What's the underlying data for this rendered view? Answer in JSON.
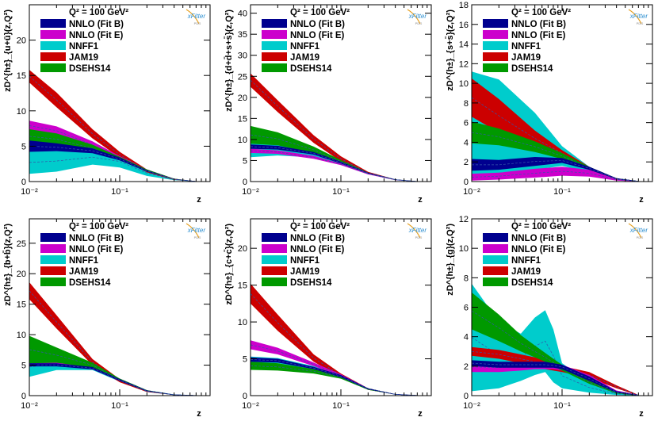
{
  "figure": {
    "q2_label": "Q² = 100 GeV²",
    "logo_text": "xFitter",
    "logo_sub": "PDG",
    "xlabel": "z",
    "xticks": [
      "10⁻²",
      "10⁻¹"
    ],
    "legend": [
      {
        "name": "NNLO (Fit B)",
        "color": "#00008f"
      },
      {
        "name": "NNLO (Fit E)",
        "color": "#cc00cc"
      },
      {
        "name": "NNFF1",
        "color": "#00cccc"
      },
      {
        "name": "JAM19",
        "color": "#cc0000"
      },
      {
        "name": "DSEHS14",
        "color": "#009900"
      }
    ]
  },
  "chart_data": [
    {
      "type": "area",
      "ylabel": "zD^{h±}_{u+ū}(z,Q²)",
      "ylim": [
        0,
        25
      ],
      "yticks": [
        0,
        5,
        10,
        15,
        20
      ],
      "xlim": [
        0.01,
        1
      ],
      "series": [
        {
          "name": "NNFF1",
          "color": "#00cccc",
          "x": [
            0.01,
            0.02,
            0.05,
            0.1,
            0.2,
            0.4,
            0.7
          ],
          "lower": [
            1.1,
            1.4,
            2.4,
            2.0,
            0.8,
            0.2,
            0.0
          ],
          "upper": [
            4.3,
            4.4,
            4.5,
            3.7,
            1.6,
            0.35,
            0.05
          ]
        },
        {
          "name": "JAM19",
          "color": "#cc0000",
          "x": [
            0.01,
            0.02,
            0.05,
            0.1,
            0.2,
            0.4,
            0.7
          ],
          "lower": [
            14.0,
            10.5,
            6.1,
            3.4,
            1.3,
            0.25,
            0.0
          ],
          "upper": [
            15.8,
            12.6,
            7.4,
            4.2,
            1.7,
            0.4,
            0.05
          ]
        },
        {
          "name": "NNLO (Fit E)",
          "color": "#cc00cc",
          "x": [
            0.01,
            0.02,
            0.05,
            0.1,
            0.2,
            0.4,
            0.7
          ],
          "lower": [
            7.2,
            6.6,
            4.7,
            3.0,
            1.4,
            0.3,
            0.0
          ],
          "upper": [
            8.6,
            7.8,
            5.7,
            3.6,
            1.7,
            0.4,
            0.05
          ]
        },
        {
          "name": "DSEHS14",
          "color": "#009900",
          "x": [
            0.01,
            0.02,
            0.05,
            0.1,
            0.2,
            0.4,
            0.7
          ],
          "lower": [
            5.4,
            5.2,
            4.2,
            3.0,
            1.4,
            0.3,
            0.0
          ],
          "upper": [
            7.4,
            6.8,
            5.2,
            3.5,
            1.7,
            0.4,
            0.05
          ]
        },
        {
          "name": "NNLO (Fit B)",
          "color": "#00008f",
          "x": [
            0.01,
            0.02,
            0.05,
            0.1,
            0.2,
            0.4,
            0.7
          ],
          "lower": [
            4.2,
            4.3,
            4.0,
            3.0,
            1.4,
            0.3,
            0.0
          ],
          "upper": [
            5.8,
            5.4,
            4.7,
            3.4,
            1.6,
            0.35,
            0.05
          ]
        }
      ]
    },
    {
      "type": "area",
      "ylabel": "zD^{h±}_{d+d̄+s+s̄}(z,Q²)",
      "ylim": [
        0,
        42
      ],
      "yticks": [
        0,
        5,
        10,
        15,
        20,
        25,
        30,
        35,
        40
      ],
      "xlim": [
        0.01,
        1
      ],
      "series": [
        {
          "name": "NNFF1",
          "color": "#00cccc",
          "x": [
            0.01,
            0.02,
            0.05,
            0.1,
            0.2,
            0.4,
            0.7
          ],
          "lower": [
            5.8,
            6.2,
            5.7,
            4.1,
            1.8,
            0.4,
            0.0
          ],
          "upper": [
            11.2,
            10.6,
            7.2,
            4.7,
            2.1,
            0.5,
            0.05
          ]
        },
        {
          "name": "JAM19",
          "color": "#cc0000",
          "x": [
            0.01,
            0.02,
            0.05,
            0.1,
            0.2,
            0.4,
            0.7
          ],
          "lower": [
            22.5,
            16.5,
            9.2,
            4.8,
            1.8,
            0.35,
            0.0
          ],
          "upper": [
            25.7,
            19.3,
            11.0,
            6.0,
            2.3,
            0.5,
            0.05
          ]
        },
        {
          "name": "NNLO (Fit E)",
          "color": "#cc00cc",
          "x": [
            0.01,
            0.02,
            0.05,
            0.1,
            0.2,
            0.4,
            0.7
          ],
          "lower": [
            6.8,
            6.6,
            5.4,
            3.9,
            1.7,
            0.35,
            0.0
          ],
          "upper": [
            7.8,
            7.4,
            6.1,
            4.3,
            2.0,
            0.45,
            0.05
          ]
        },
        {
          "name": "DSEHS14",
          "color": "#009900",
          "x": [
            0.01,
            0.02,
            0.05,
            0.1,
            0.2,
            0.4,
            0.7
          ],
          "lower": [
            9.0,
            8.6,
            6.8,
            4.4,
            1.9,
            0.4,
            0.0
          ],
          "upper": [
            13.2,
            11.7,
            8.3,
            5.1,
            2.1,
            0.5,
            0.05
          ]
        },
        {
          "name": "NNLO (Fit B)",
          "color": "#00008f",
          "x": [
            0.01,
            0.02,
            0.05,
            0.1,
            0.2,
            0.4,
            0.7
          ],
          "lower": [
            7.8,
            7.6,
            6.4,
            4.3,
            1.9,
            0.4,
            0.0
          ],
          "upper": [
            8.8,
            8.5,
            7.0,
            4.7,
            2.1,
            0.5,
            0.05
          ]
        }
      ]
    },
    {
      "type": "area",
      "ylabel": "zD^{h±}_{s+s̄}(z,Q²)",
      "ylim": [
        0,
        18
      ],
      "yticks": [
        0,
        2,
        4,
        6,
        8,
        10,
        12,
        14,
        16,
        18
      ],
      "xlim": [
        0.01,
        1
      ],
      "series": [
        {
          "name": "NNFF1",
          "color": "#00cccc",
          "x": [
            0.01,
            0.02,
            0.05,
            0.1,
            0.2,
            0.4,
            0.7
          ],
          "lower": [
            0.3,
            0.6,
            1.2,
            1.6,
            0.9,
            0.2,
            0.0
          ],
          "upper": [
            11.2,
            10.4,
            7.0,
            3.6,
            1.5,
            0.3,
            0.05
          ]
        },
        {
          "name": "JAM19",
          "color": "#cc0000",
          "x": [
            0.01,
            0.02,
            0.05,
            0.1,
            0.2,
            0.4,
            0.7
          ],
          "lower": [
            6.6,
            5.0,
            3.6,
            2.6,
            1.2,
            0.25,
            0.0
          ],
          "upper": [
            10.5,
            8.4,
            5.2,
            3.2,
            1.5,
            0.35,
            0.05
          ]
        },
        {
          "name": "NNLO (Fit E)",
          "color": "#cc00cc",
          "x": [
            0.01,
            0.02,
            0.05,
            0.1,
            0.2,
            0.4,
            0.7
          ],
          "lower": [
            0.1,
            0.2,
            0.4,
            0.6,
            0.5,
            0.1,
            0.0
          ],
          "upper": [
            0.8,
            0.9,
            1.3,
            1.5,
            1.2,
            0.3,
            0.05
          ]
        },
        {
          "name": "DSEHS14",
          "color": "#009900",
          "x": [
            0.01,
            0.02,
            0.05,
            0.1,
            0.2,
            0.4,
            0.7
          ],
          "lower": [
            3.9,
            3.7,
            3.0,
            2.3,
            1.2,
            0.25,
            0.0
          ],
          "upper": [
            6.1,
            5.4,
            4.1,
            2.9,
            1.5,
            0.35,
            0.05
          ]
        },
        {
          "name": "NNLO (Fit B)",
          "color": "#00008f",
          "x": [
            0.01,
            0.02,
            0.05,
            0.1,
            0.2,
            0.4,
            0.7
          ],
          "lower": [
            1.1,
            1.2,
            1.6,
            1.9,
            1.2,
            0.25,
            0.0
          ],
          "upper": [
            2.3,
            2.2,
            2.5,
            2.4,
            1.5,
            0.35,
            0.05
          ]
        }
      ]
    },
    {
      "type": "area",
      "ylabel": "zD^{h±}_{b+b̄}(z,Q²)",
      "ylim": [
        0,
        29
      ],
      "yticks": [
        0,
        5,
        10,
        15,
        20,
        25
      ],
      "xlim": [
        0.01,
        1
      ],
      "series": [
        {
          "name": "NNFF1",
          "color": "#00cccc",
          "x": [
            0.01,
            0.02,
            0.05,
            0.1,
            0.2,
            0.4,
            0.7
          ],
          "lower": [
            3.1,
            4.2,
            4.2,
            2.3,
            0.6,
            0.1,
            0.0
          ],
          "upper": [
            6.3,
            6.2,
            5.1,
            2.8,
            0.9,
            0.2,
            0.05
          ]
        },
        {
          "name": "JAM19",
          "color": "#cc0000",
          "x": [
            0.01,
            0.02,
            0.05,
            0.1,
            0.2,
            0.4,
            0.7
          ],
          "lower": [
            15.8,
            11.0,
            5.0,
            2.2,
            0.6,
            0.1,
            0.0
          ],
          "upper": [
            18.6,
            13.2,
            6.0,
            2.7,
            0.8,
            0.15,
            0.05
          ]
        },
        {
          "name": "NNLO (Fit E)",
          "color": "#cc00cc",
          "x": [
            0.01,
            0.02,
            0.05,
            0.1,
            0.2,
            0.4,
            0.7
          ],
          "lower": [
            5.0,
            4.9,
            4.3,
            2.4,
            0.7,
            0.1,
            0.0
          ],
          "upper": [
            5.6,
            5.5,
            4.8,
            2.8,
            0.9,
            0.15,
            0.05
          ]
        },
        {
          "name": "DSEHS14",
          "color": "#009900",
          "x": [
            0.01,
            0.02,
            0.05,
            0.1,
            0.2,
            0.4,
            0.7
          ],
          "lower": [
            5.3,
            5.4,
            4.6,
            2.4,
            0.7,
            0.1,
            0.0
          ],
          "upper": [
            9.8,
            7.9,
            5.4,
            2.8,
            0.9,
            0.15,
            0.05
          ]
        },
        {
          "name": "NNLO (Fit B)",
          "color": "#00008f",
          "x": [
            0.01,
            0.02,
            0.05,
            0.1,
            0.2,
            0.4,
            0.7
          ],
          "lower": [
            4.8,
            4.8,
            4.3,
            2.4,
            0.7,
            0.1,
            0.0
          ],
          "upper": [
            5.3,
            5.3,
            4.7,
            2.7,
            0.85,
            0.15,
            0.05
          ]
        }
      ]
    },
    {
      "type": "area",
      "ylabel": "zD^{h±}_{c+c̄}(z,Q²)",
      "ylim": [
        0,
        24
      ],
      "yticks": [
        0,
        5,
        10,
        15,
        20
      ],
      "xlim": [
        0.01,
        1
      ],
      "series": [
        {
          "name": "NNFF1",
          "color": "#00cccc",
          "x": [
            0.01,
            0.02,
            0.05,
            0.1,
            0.2,
            0.4,
            0.7
          ],
          "lower": [
            4.5,
            4.4,
            3.5,
            2.4,
            0.8,
            0.15,
            0.0
          ],
          "upper": [
            5.3,
            5.1,
            4.0,
            2.8,
            1.0,
            0.2,
            0.05
          ]
        },
        {
          "name": "JAM19",
          "color": "#cc0000",
          "x": [
            0.01,
            0.02,
            0.05,
            0.1,
            0.2,
            0.4,
            0.7
          ],
          "lower": [
            12.5,
            8.8,
            4.6,
            2.5,
            0.8,
            0.15,
            0.0
          ],
          "upper": [
            15.2,
            11.0,
            5.6,
            3.0,
            1.0,
            0.2,
            0.05
          ]
        },
        {
          "name": "NNLO (Fit E)",
          "color": "#cc00cc",
          "x": [
            0.01,
            0.02,
            0.05,
            0.1,
            0.2,
            0.4,
            0.7
          ],
          "lower": [
            6.3,
            5.6,
            4.0,
            2.6,
            0.9,
            0.15,
            0.0
          ],
          "upper": [
            7.5,
            6.5,
            4.5,
            2.9,
            1.0,
            0.2,
            0.05
          ]
        },
        {
          "name": "DSEHS14",
          "color": "#009900",
          "x": [
            0.01,
            0.02,
            0.05,
            0.1,
            0.2,
            0.4,
            0.7
          ],
          "lower": [
            3.5,
            3.4,
            3.0,
            2.3,
            0.8,
            0.15,
            0.0
          ],
          "upper": [
            4.6,
            4.4,
            3.6,
            2.7,
            1.0,
            0.2,
            0.05
          ]
        },
        {
          "name": "NNLO (Fit B)",
          "color": "#00008f",
          "x": [
            0.01,
            0.02,
            0.05,
            0.1,
            0.2,
            0.4,
            0.7
          ],
          "lower": [
            4.6,
            4.5,
            3.6,
            2.5,
            0.85,
            0.15,
            0.0
          ],
          "upper": [
            5.2,
            5.0,
            3.9,
            2.8,
            1.0,
            0.2,
            0.05
          ]
        }
      ]
    },
    {
      "type": "area",
      "ylabel": "zD^{h±}_{g}(z,Q²)",
      "ylim": [
        0,
        12
      ],
      "yticks": [
        0,
        2,
        4,
        6,
        8,
        10,
        12
      ],
      "xlim": [
        0.01,
        1
      ],
      "series": [
        {
          "name": "NNFF1",
          "color": "#00cccc",
          "x": [
            0.01,
            0.02,
            0.035,
            0.05,
            0.065,
            0.08,
            0.1,
            0.2,
            0.4,
            0.7
          ],
          "lower": [
            0.3,
            0.5,
            1.0,
            1.4,
            1.6,
            0.9,
            0.5,
            0.2,
            0.05,
            0.0
          ],
          "upper": [
            7.6,
            5.0,
            4.2,
            5.3,
            5.8,
            4.5,
            2.2,
            0.9,
            0.2,
            0.05
          ]
        },
        {
          "name": "JAM19",
          "color": "#cc0000",
          "x": [
            0.01,
            0.02,
            0.035,
            0.05,
            0.065,
            0.08,
            0.1,
            0.2,
            0.4,
            0.7
          ],
          "lower": [
            2.7,
            2.5,
            2.2,
            2.0,
            1.8,
            1.7,
            1.6,
            1.2,
            0.5,
            0.0
          ],
          "upper": [
            3.3,
            3.1,
            2.8,
            2.6,
            2.4,
            2.2,
            2.0,
            1.6,
            0.7,
            0.05
          ]
        },
        {
          "name": "NNLO (Fit E)",
          "color": "#cc00cc",
          "x": [
            0.01,
            0.02,
            0.035,
            0.05,
            0.065,
            0.08,
            0.1,
            0.2,
            0.4,
            0.7
          ],
          "lower": [
            1.6,
            1.6,
            1.7,
            1.8,
            1.8,
            1.8,
            1.7,
            1.0,
            0.2,
            0.0
          ],
          "upper": [
            2.3,
            2.2,
            2.2,
            2.3,
            2.3,
            2.2,
            2.1,
            1.4,
            0.35,
            0.05
          ]
        },
        {
          "name": "DSEHS14",
          "color": "#009900",
          "x": [
            0.01,
            0.02,
            0.035,
            0.05,
            0.065,
            0.08,
            0.1,
            0.2,
            0.4,
            0.7
          ],
          "lower": [
            4.5,
            3.7,
            3.0,
            2.6,
            2.3,
            2.0,
            1.7,
            0.8,
            0.15,
            0.0
          ],
          "upper": [
            7.0,
            5.5,
            4.1,
            3.4,
            2.9,
            2.5,
            2.1,
            1.0,
            0.25,
            0.05
          ]
        },
        {
          "name": "NNLO (Fit B)",
          "color": "#00008f",
          "x": [
            0.01,
            0.02,
            0.035,
            0.05,
            0.065,
            0.08,
            0.1,
            0.2,
            0.4,
            0.7
          ],
          "lower": [
            2.0,
            1.9,
            1.9,
            1.9,
            1.9,
            1.9,
            1.8,
            1.0,
            0.2,
            0.0
          ],
          "upper": [
            2.4,
            2.3,
            2.3,
            2.3,
            2.3,
            2.2,
            2.1,
            1.3,
            0.3,
            0.05
          ]
        }
      ]
    }
  ]
}
